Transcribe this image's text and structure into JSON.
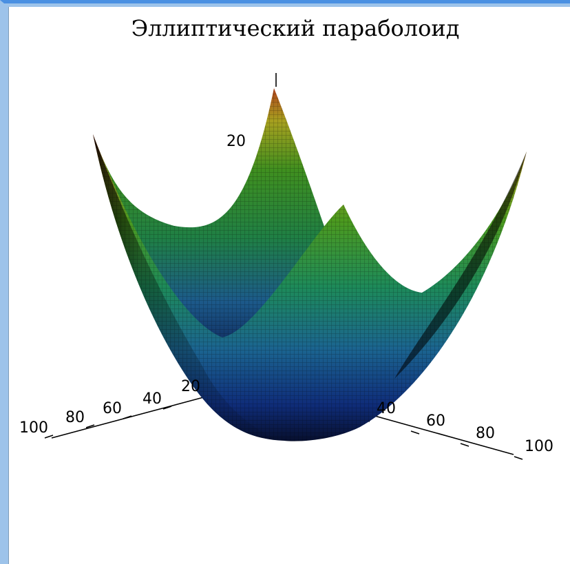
{
  "chart_data": {
    "type": "surface3d",
    "title": "Эллиптический параболоид",
    "surface": "elliptic-paraboloid",
    "colormap": "rainbow",
    "mesh_lines": true,
    "axes": {
      "x": {
        "ticks": [
          20,
          40,
          60,
          80,
          100
        ]
      },
      "y": {
        "ticks": [
          40,
          60,
          80,
          100
        ]
      },
      "z": {
        "ticks": [
          20
        ]
      }
    }
  }
}
